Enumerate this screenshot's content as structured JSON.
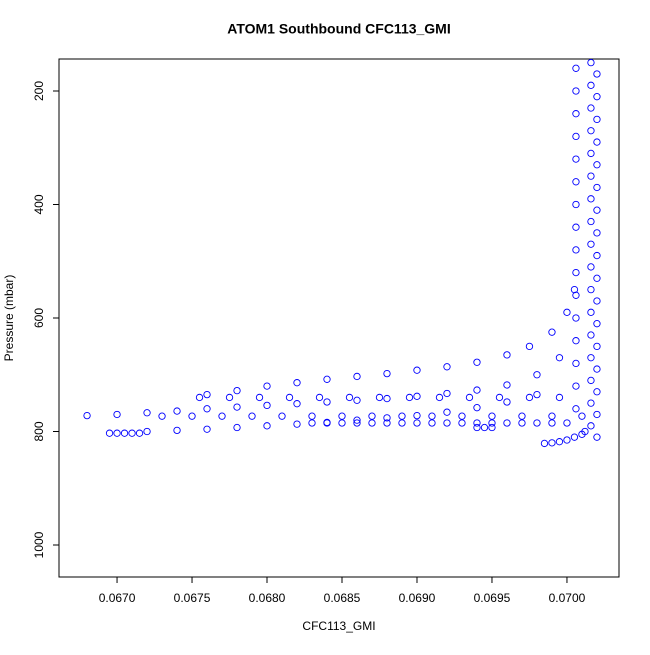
{
  "chart_data": {
    "type": "scatter",
    "title": "ATOM1 Southbound CFC113_GMI",
    "x_label": "CFC113_GMI",
    "y_label": "Pressure (mbar)",
    "color": "#0000ff",
    "x": [
      0.07016,
      0.0702,
      0.07016,
      0.0702,
      0.07016,
      0.0702,
      0.07016,
      0.0702,
      0.07016,
      0.0702,
      0.07016,
      0.0702,
      0.07016,
      0.0702,
      0.07016,
      0.0702,
      0.07016,
      0.0702,
      0.07016,
      0.0702,
      0.07016,
      0.0702,
      0.07016,
      0.0702,
      0.07016,
      0.0702,
      0.07016,
      0.0702,
      0.07016,
      0.0702,
      0.07016,
      0.0702,
      0.07016,
      0.0702,
      0.07006,
      0.07006,
      0.07006,
      0.07006,
      0.07006,
      0.07006,
      0.07006,
      0.07006,
      0.07006,
      0.07006,
      0.07006,
      0.07006,
      0.07006,
      0.07006,
      0.07006,
      0.07006,
      0.06985,
      0.0699,
      0.06995,
      0.07,
      0.07005,
      0.0701,
      0.07012,
      0.0676,
      0.0678,
      0.068,
      0.0682,
      0.0684,
      0.0686,
      0.0688,
      0.069,
      0.0692,
      0.0694,
      0.0696,
      0.06975,
      0.0699,
      0.07,
      0.07005,
      0.0668,
      0.067,
      0.0672,
      0.0674,
      0.0676,
      0.0678,
      0.068,
      0.0682,
      0.0684,
      0.0686,
      0.0688,
      0.069,
      0.0692,
      0.0694,
      0.0696,
      0.0698,
      0.06995,
      0.0672,
      0.0674,
      0.0676,
      0.0678,
      0.068,
      0.0682,
      0.0684,
      0.0686,
      0.0688,
      0.069,
      0.0692,
      0.0694,
      0.0696,
      0.0698,
      0.06695,
      0.067,
      0.06705,
      0.0671,
      0.06715,
      0.06755,
      0.06775,
      0.06795,
      0.06815,
      0.06835,
      0.06855,
      0.06875,
      0.06895,
      0.06915,
      0.06935,
      0.06955,
      0.06975,
      0.06995,
      0.0673,
      0.0675,
      0.0677,
      0.0679,
      0.0681,
      0.0683,
      0.0685,
      0.0687,
      0.0689,
      0.0691,
      0.0693,
      0.0695,
      0.0697,
      0.0699,
      0.0701,
      0.0683,
      0.0684,
      0.0685,
      0.0686,
      0.0687,
      0.0688,
      0.0689,
      0.069,
      0.0691,
      0.0692,
      0.0693,
      0.0694,
      0.0695,
      0.0696,
      0.0697,
      0.0698,
      0.0699,
      0.07,
      0.0694,
      0.06945,
      0.0695
    ],
    "values": [
      150,
      170,
      190,
      210,
      230,
      250,
      270,
      290,
      310,
      330,
      350,
      370,
      390,
      410,
      430,
      450,
      470,
      490,
      510,
      530,
      550,
      570,
      590,
      610,
      630,
      650,
      670,
      690,
      710,
      730,
      750,
      770,
      790,
      810,
      160,
      200,
      240,
      280,
      320,
      360,
      400,
      440,
      480,
      520,
      560,
      600,
      640,
      680,
      720,
      760,
      821,
      820,
      818,
      815,
      810,
      805,
      800,
      735,
      728,
      720,
      714,
      708,
      703,
      698,
      692,
      686,
      678,
      665,
      650,
      625,
      590,
      550,
      772,
      770,
      767,
      764,
      760,
      757,
      754,
      751,
      748,
      745,
      742,
      738,
      733,
      727,
      718,
      700,
      670,
      800,
      798,
      796,
      793,
      790,
      787,
      784,
      780,
      776,
      772,
      766,
      758,
      748,
      735,
      803,
      803,
      803,
      803,
      803,
      740,
      740,
      740,
      740,
      740,
      740,
      740,
      740,
      740,
      740,
      740,
      740,
      740,
      773,
      773,
      773,
      773,
      773,
      773,
      773,
      773,
      773,
      773,
      773,
      773,
      773,
      773,
      773,
      785,
      785,
      785,
      785,
      785,
      785,
      785,
      785,
      785,
      785,
      785,
      785,
      785,
      785,
      785,
      785,
      785,
      785,
      793,
      793,
      793
    ],
    "xlim": [
      0.066613,
      0.070347
    ],
    "ylim": [
      1056.4,
      143.6
    ],
    "xticks": [
      {
        "value": 0.067,
        "label": "0.0670"
      },
      0.0675,
      {
        "value": 0.068,
        "label": "0.0680"
      },
      0.0685,
      {
        "value": 0.069,
        "label": "0.0690"
      },
      0.0695,
      {
        "value": 0.07,
        "label": "0.0700"
      }
    ],
    "yticks": [
      200,
      400,
      600,
      800,
      1000
    ]
  }
}
